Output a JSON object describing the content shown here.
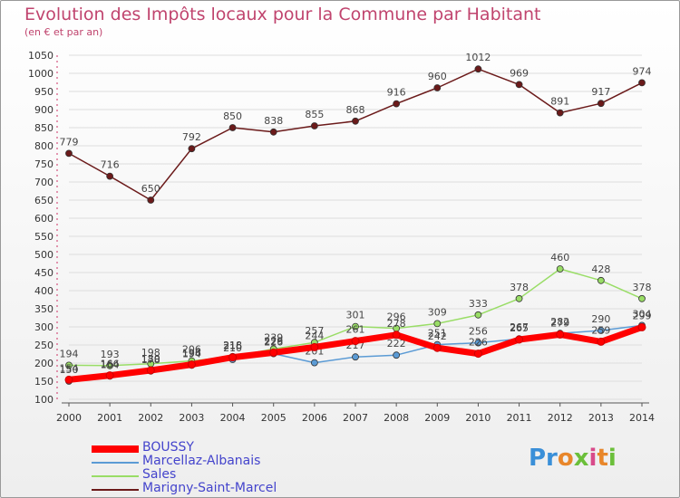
{
  "title": "Evolution des Impôts locaux pour la Commune par Habitant",
  "subtitle": "(en € et par an)",
  "logo_text": "Proxiti",
  "chart_data": {
    "type": "line",
    "title": "Evolution des Impôts locaux pour la Commune par Habitant",
    "subtitle": "(en € et par an)",
    "x": [
      "2000",
      "2001",
      "2002",
      "2003",
      "2004",
      "2005",
      "2006",
      "2007",
      "2008",
      "2009",
      "2010",
      "2011",
      "2012",
      "2013",
      "2014"
    ],
    "ylim": [
      100,
      1050
    ],
    "yticks": [
      100,
      150,
      200,
      250,
      300,
      350,
      400,
      450,
      500,
      550,
      600,
      650,
      700,
      750,
      800,
      850,
      900,
      950,
      1000,
      1050
    ],
    "grid": "horizontal",
    "legend_position": "bottom-left",
    "series": [
      {
        "name": "BOUSSY",
        "color": "#ff0000",
        "values": [
          154,
          166,
          180,
          196,
          216,
          229,
          244,
          261,
          278,
          242,
          226,
          265,
          279,
          259,
          299
        ]
      },
      {
        "name": "Marcellaz-Albanais",
        "color": "#5b9bd5",
        "values": [
          150,
          164,
          178,
          194,
          210,
          226,
          201,
          217,
          222,
          251,
          256,
          267,
          282,
          290,
          304
        ]
      },
      {
        "name": "Sales",
        "color": "#99dd66",
        "values": [
          194,
          193,
          198,
          206,
          218,
          239,
          257,
          301,
          296,
          309,
          333,
          378,
          460,
          428,
          378
        ]
      },
      {
        "name": "Marigny-Saint-Marcel",
        "color": "#6b1a1a",
        "values": [
          779,
          716,
          650,
          792,
          850,
          838,
          855,
          868,
          916,
          960,
          1012,
          969,
          891,
          917,
          974
        ]
      }
    ]
  }
}
